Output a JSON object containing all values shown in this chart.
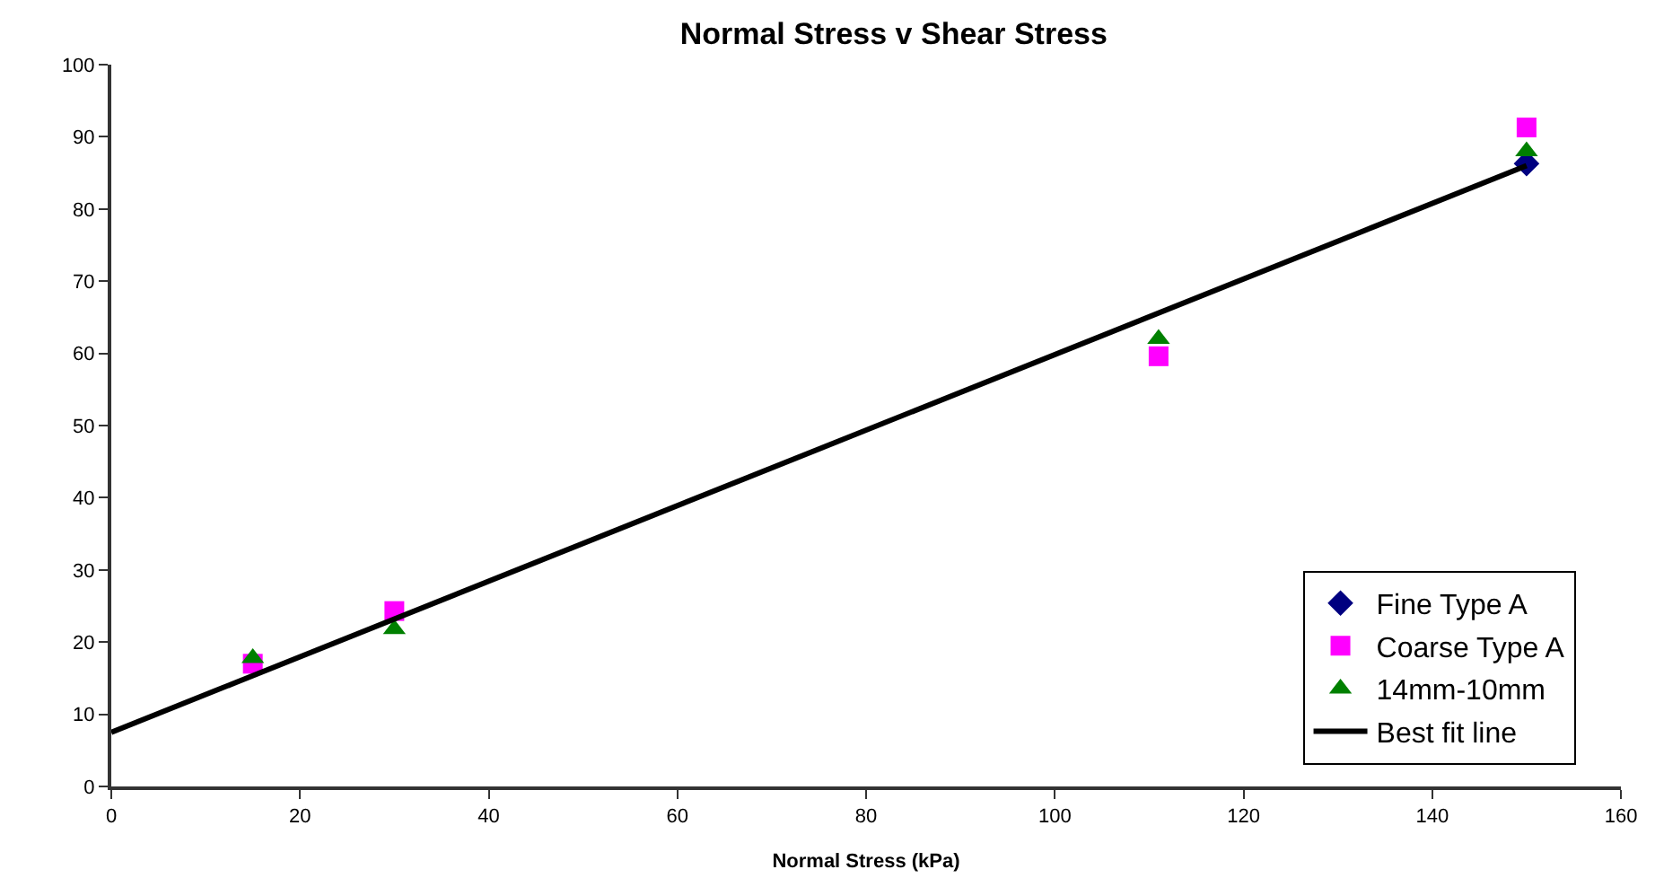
{
  "chart_data": {
    "type": "scatter",
    "title": "Normal Stress v Shear Stress",
    "xlabel": "Normal Stress (kPa)",
    "x": [
      15,
      30,
      111,
      150
    ],
    "series": [
      {
        "name": "Fine Type A",
        "color": "#000080",
        "marker": "diamond",
        "values": [
          null,
          null,
          null,
          86.3
        ]
      },
      {
        "name": "Coarse Type A",
        "color": "#ff00ff",
        "marker": "square",
        "values": [
          17,
          24.3,
          59.6,
          91.3
        ]
      },
      {
        "name": "14mm-10mm",
        "color": "#008000",
        "marker": "triangle",
        "values": [
          17.8,
          21.8,
          62,
          88
        ]
      },
      {
        "name": "Best fit line",
        "type": "line",
        "color": "#000000",
        "marker": "none",
        "line_style": "solid",
        "x": [
          0,
          150
        ],
        "values": [
          7.5,
          86
        ]
      }
    ],
    "xlim": [
      0,
      160
    ],
    "xticks": [
      0,
      20,
      40,
      60,
      80,
      100,
      120,
      140,
      160
    ],
    "ylim": [
      0,
      100
    ],
    "yticks": [
      0,
      10,
      20,
      30,
      40,
      50,
      60,
      70,
      80,
      90,
      100
    ],
    "grid": false,
    "legend": "bottom right"
  }
}
